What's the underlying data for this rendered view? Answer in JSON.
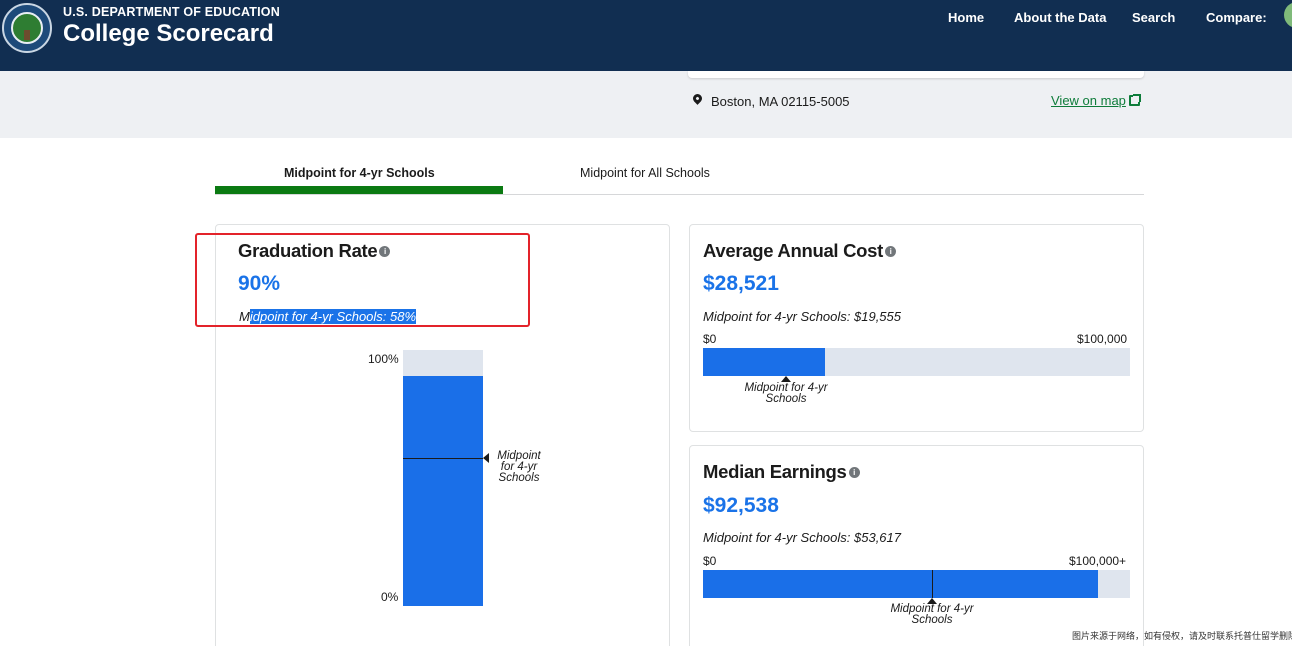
{
  "header": {
    "department": "U.S. DEPARTMENT OF EDUCATION",
    "brand": "College Scorecard",
    "nav": {
      "home": "Home",
      "about": "About the Data",
      "search": "Search",
      "compare": "Compare:"
    }
  },
  "location": {
    "address": "Boston, MA  02115-5005",
    "view_map": "View on map"
  },
  "tabs": [
    {
      "label": "Midpoint for 4-yr Schools",
      "active": true
    },
    {
      "label": "Midpoint for All Schools",
      "active": false
    }
  ],
  "graduation": {
    "title": "Graduation Rate",
    "value": "90%",
    "midpoint_prefix": "M",
    "midpoint_selected": "idpoint for 4-yr Schools: 58%",
    "axis_top": "100%",
    "axis_bottom": "0%",
    "mid_label_1": "Midpoint",
    "mid_label_2": "for 4-yr",
    "mid_label_3": "Schools",
    "value_fraction": 0.9,
    "midpoint_fraction": 0.58
  },
  "cost": {
    "title": "Average Annual Cost",
    "value": "$28,521",
    "midpoint": "Midpoint for 4-yr Schools: $19,555",
    "range_min": "$0",
    "range_max": "$100,000",
    "mid_label_1": "Midpoint for 4-yr",
    "mid_label_2": "Schools",
    "value_fraction": 0.28521,
    "midpoint_fraction": 0.19555
  },
  "earnings": {
    "title": "Median Earnings",
    "value": "$92,538",
    "midpoint": "Midpoint for 4-yr Schools: $53,617",
    "range_min": "$0",
    "range_max": "$100,000+",
    "mid_label_1": "Midpoint for 4-yr",
    "mid_label_2": "Schools",
    "value_fraction": 0.92538,
    "midpoint_fraction": 0.53617
  },
  "watermark": "图片来源于网络，如有侵权，请及时联系托普仕留学删除"
}
